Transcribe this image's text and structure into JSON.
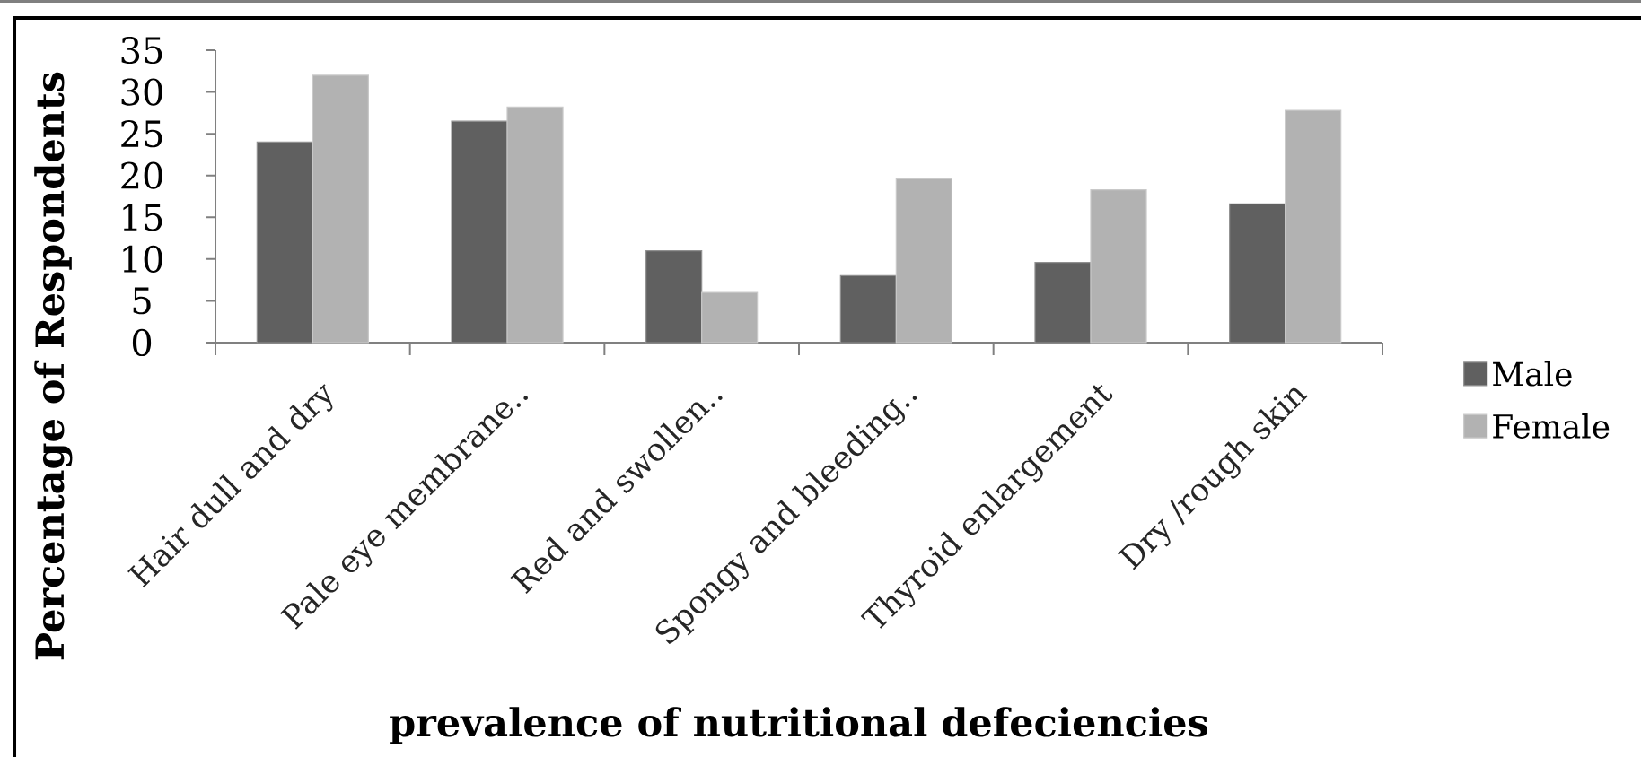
{
  "chart_data": {
    "type": "bar",
    "xlabel": "prevalence of nutritional defeciencies",
    "ylabel": "Percentage of Respondents",
    "categories": [
      "Hair dull and dry",
      "Pale eye membrane..",
      "Red and swollen..",
      "Spongy and bleeding..",
      "Thyroid enlargement",
      "Dry /rough skin"
    ],
    "series": [
      {
        "name": "Male",
        "color": "#606060",
        "values": [
          24,
          26.5,
          11,
          8,
          9.6,
          16.6
        ]
      },
      {
        "name": "Female",
        "color": "#b2b2b2",
        "values": [
          32,
          28.2,
          6,
          19.6,
          18.3,
          27.8
        ]
      }
    ],
    "ylim": [
      0,
      35
    ],
    "yticks": [
      0,
      5,
      10,
      15,
      20,
      25,
      30,
      35
    ],
    "grid": false,
    "legend": "right"
  }
}
